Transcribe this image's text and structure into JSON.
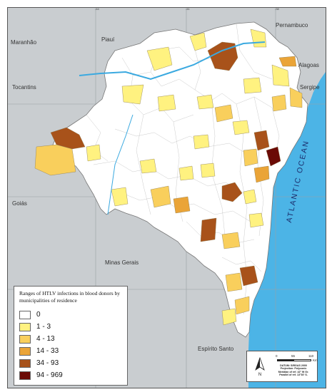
{
  "map": {
    "ticks": [
      "-44",
      "-41",
      "-38"
    ],
    "neighbors": {
      "maranhao": "Maranhão",
      "piaui": "Piauí",
      "pernambuco": "Pernambuco",
      "alagoas": "Alagoas",
      "tocantins": "Tocantins",
      "sergipe": "Sergipe",
      "goias": "Goiás",
      "minas_gerais": "Minas Gerais",
      "espirito_santo": "Espírito Santo"
    },
    "ocean_label": "ATLANTIC OCEAN"
  },
  "legend": {
    "title": "Ranges of HTLV infections in blood donors by municipalities of residence",
    "items": [
      {
        "label": "0",
        "color": "#ffffff"
      },
      {
        "label": "1 - 3",
        "color": "#fff280"
      },
      {
        "label": "4 - 13",
        "color": "#f9cf5c"
      },
      {
        "label": "14 - 33",
        "color": "#eaa437"
      },
      {
        "label": "34 - 93",
        "color": "#a8521a"
      },
      {
        "label": "94 - 969",
        "color": "#6b0a06"
      }
    ]
  },
  "scale": {
    "ticks": [
      "0",
      "55",
      "110"
    ],
    "unit": "Km",
    "datum": "DATUM: SIRGAS 2000",
    "projection": "Projection: Polyconic",
    "meridian": "Meridian of ref. 42° W Gr.",
    "parallel": "Parallel of ref. 13°30' S."
  },
  "north_label": "N",
  "colors": {
    "land": "#c9cdd0",
    "ocean": "#4cb4e6",
    "river": "#3aa9e0",
    "border": "#888888"
  }
}
